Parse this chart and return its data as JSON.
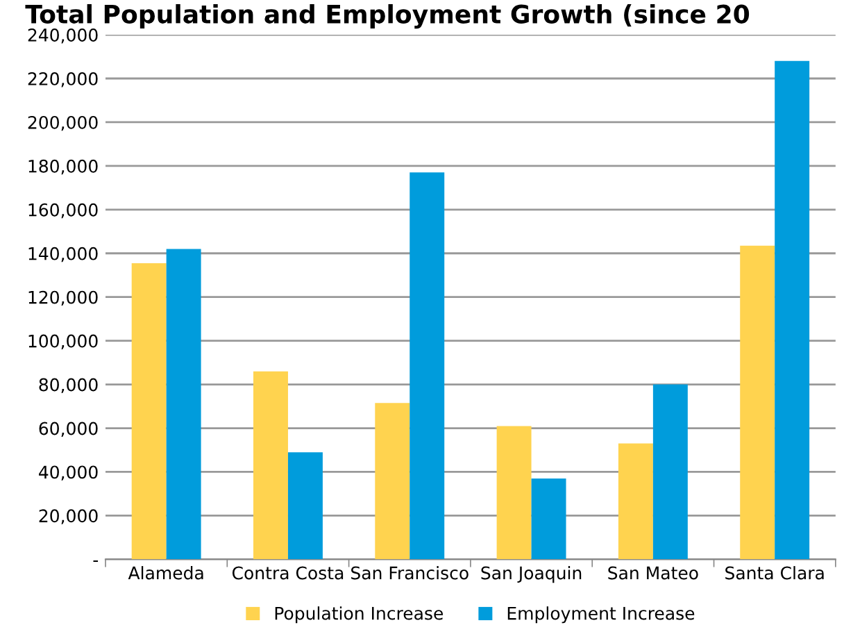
{
  "chart_data": {
    "type": "bar",
    "title": "Total Population and Employment Growth (since 20",
    "categories": [
      "Alameda",
      "Contra Costa",
      "San Francisco",
      "San Joaquin",
      "San Mateo",
      "Santa Clara"
    ],
    "series": [
      {
        "name": "Population Increase",
        "color": "#ffd34f",
        "values": [
          135500,
          86000,
          71500,
          61000,
          53000,
          143500
        ]
      },
      {
        "name": "Employment Increase",
        "color": "#009cdc",
        "values": [
          142000,
          49000,
          177000,
          37000,
          80000,
          228000
        ]
      }
    ],
    "ylim": [
      0,
      240000
    ],
    "yticks": [
      {
        "value": 0,
        "label": "-"
      },
      {
        "value": 20000,
        "label": "20,000"
      },
      {
        "value": 40000,
        "label": "40,000"
      },
      {
        "value": 60000,
        "label": "60,000"
      },
      {
        "value": 80000,
        "label": "80,000"
      },
      {
        "value": 100000,
        "label": "100,000"
      },
      {
        "value": 120000,
        "label": "120,000"
      },
      {
        "value": 140000,
        "label": "140,000"
      },
      {
        "value": 160000,
        "label": "160,000"
      },
      {
        "value": 180000,
        "label": "180,000"
      },
      {
        "value": 200000,
        "label": "200,000"
      },
      {
        "value": 220000,
        "label": "220,000"
      },
      {
        "value": 240000,
        "label": "240,000"
      }
    ],
    "grid": "y",
    "legend": "bottom"
  }
}
